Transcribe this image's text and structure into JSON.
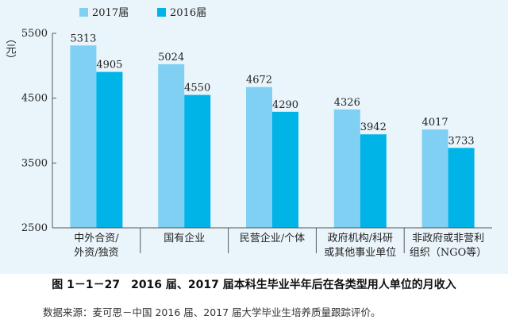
{
  "chart_data": {
    "type": "bar",
    "categories": [
      [
        "中外合资/",
        "外资/独资"
      ],
      [
        "国有企业"
      ],
      [
        "民营企业/个体"
      ],
      [
        "政府机构/科研",
        "或其他事业单位"
      ],
      [
        "非政府或非营利",
        "组织（NGO等）"
      ]
    ],
    "series": [
      {
        "name": "2017届",
        "values": [
          5313,
          5024,
          4672,
          4326,
          4017
        ],
        "color": "#7fd0f2"
      },
      {
        "name": "2016届",
        "values": [
          4905,
          4550,
          4290,
          3942,
          3733
        ],
        "color": "#00b4e8"
      }
    ],
    "ylabel": "（元）",
    "ylim": [
      2500,
      5500
    ],
    "yticks": [
      2500,
      3500,
      4500,
      5500
    ],
    "grid": false,
    "legend": "top-left"
  },
  "caption": "图 1－1－27　2016 届、2017 届本科生毕业半年后在各类型用人单位的月收入",
  "source": "数据来源：麦可思－中国 2016 届、2017 届大学毕业生培养质量跟踪评价。"
}
